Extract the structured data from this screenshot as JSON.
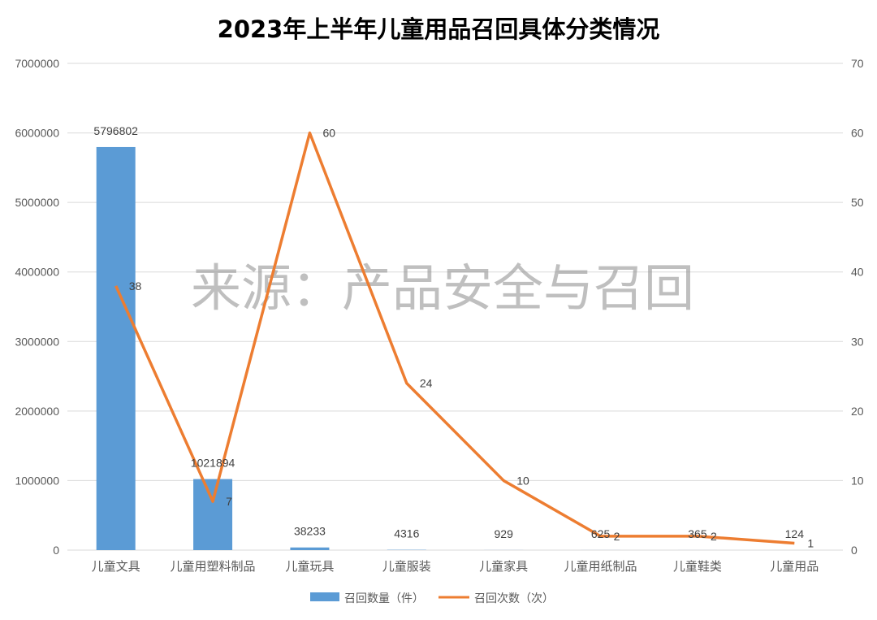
{
  "chart_data": {
    "type": "bar",
    "title": "2023年上半年儿童用品召回具体分类情况",
    "watermark": "来源：产品安全与召回",
    "categories": [
      "儿童文具",
      "儿童用塑料制品",
      "儿童玩具",
      "儿童服装",
      "儿童家具",
      "儿童用纸制品",
      "儿童鞋类",
      "儿童用品"
    ],
    "series": [
      {
        "name": "召回数量（件）",
        "type": "bar",
        "axis": "left",
        "color": "#5B9BD5",
        "values": [
          5796802,
          1021894,
          38233,
          4316,
          929,
          625,
          365,
          124
        ]
      },
      {
        "name": "召回次数（次）",
        "type": "line",
        "axis": "right",
        "color": "#ED7D31",
        "values": [
          38,
          7,
          60,
          24,
          10,
          2,
          2,
          1
        ]
      }
    ],
    "y_left": {
      "range": [
        0,
        7000000
      ],
      "ticks": [
        "0",
        "1000000",
        "2000000",
        "3000000",
        "4000000",
        "5000000",
        "6000000",
        "7000000"
      ]
    },
    "y_right": {
      "range": [
        0,
        70
      ],
      "ticks": [
        "0",
        "10",
        "20",
        "30",
        "40",
        "50",
        "60",
        "70"
      ]
    },
    "grid": true,
    "legend": "bottom"
  }
}
